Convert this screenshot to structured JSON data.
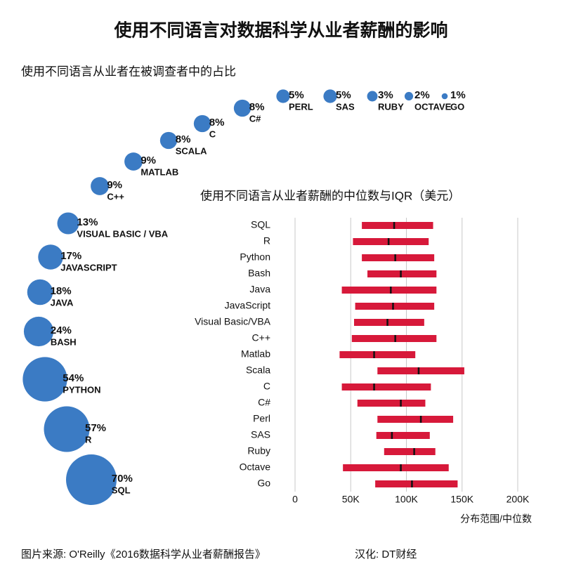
{
  "header": {
    "title": "使用不同语言对数据科学从业者薪酬的影响"
  },
  "footer": {
    "source": "图片来源: O'Reilly《2016数据科学从业者薪酬报告》",
    "credit": "汉化: DT财经"
  },
  "chart_data": [
    {
      "type": "bubble",
      "title": "使用不同语言从业者在被调查者中的占比",
      "color": "#3b7bc4",
      "categories": [
        "SQL",
        "R",
        "PYTHON",
        "BASH",
        "JAVA",
        "JAVASCRIPT",
        "VISUAL BASIC / VBA",
        "C++",
        "MATLAB",
        "SCALA",
        "C",
        "C#",
        "PERL",
        "SAS",
        "RUBY",
        "OCTAVE",
        "GO"
      ],
      "values": [
        70,
        57,
        54,
        24,
        18,
        17,
        13,
        9,
        9,
        8,
        8,
        8,
        5,
        5,
        3,
        2,
        1
      ],
      "value_labels": [
        "70%",
        "57%",
        "54%",
        "24%",
        "18%",
        "17%",
        "13%",
        "9%",
        "9%",
        "8%",
        "8%",
        "8%",
        "5%",
        "5%",
        "3%",
        "2%",
        "1%"
      ]
    },
    {
      "type": "range",
      "title": "使用不同语言从业者薪酬的中位数与IQR（美元）",
      "x_label": "分布范围/中位数",
      "color": "#d7193a",
      "median_color": "#111111",
      "grid": true,
      "categories": [
        "SQL",
        "R",
        "Python",
        "Bash",
        "Java",
        "JavaScript",
        "Visual Basic/VBA",
        "C++",
        "Matlab",
        "Scala",
        "C",
        "C#",
        "Perl",
        "SAS",
        "Ruby",
        "Octave",
        "Go"
      ],
      "low": [
        60000,
        52000,
        60000,
        65000,
        42000,
        54000,
        53000,
        51000,
        40000,
        74000,
        42000,
        56000,
        74000,
        73000,
        80000,
        43000,
        72000
      ],
      "median": [
        89000,
        84000,
        90000,
        95000,
        86000,
        88000,
        83000,
        90000,
        71000,
        111000,
        71000,
        95000,
        113000,
        87000,
        107000,
        95000,
        105000
      ],
      "high": [
        124000,
        120000,
        125000,
        127000,
        127000,
        125000,
        116000,
        127000,
        108000,
        152000,
        122000,
        117000,
        142000,
        121000,
        126000,
        138000,
        146000
      ],
      "xlim": [
        0,
        200000
      ],
      "xticks": [
        0,
        {
          "value": 50000,
          "label": "50K"
        },
        {
          "value": 100000,
          "label": "100K"
        },
        {
          "value": 150000,
          "label": "150K"
        },
        {
          "value": 200000,
          "label": "200K"
        }
      ]
    }
  ]
}
